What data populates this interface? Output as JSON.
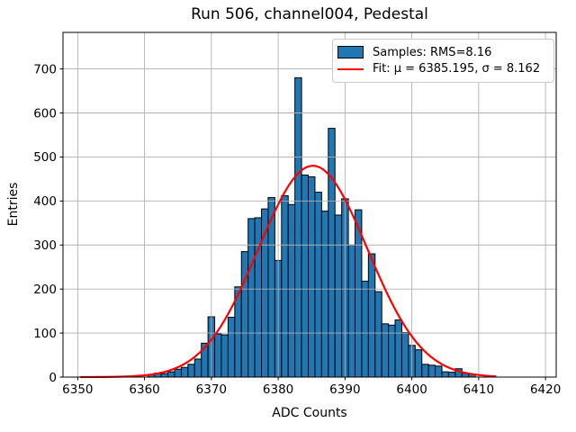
{
  "figure": {
    "title": "Run 506, channel004, Pedestal"
  },
  "colors": {
    "bar_fill": "#1f77b4",
    "bar_edge": "#000000",
    "fit_line": "#ff0000",
    "grid": "#b0b0b0",
    "axis": "#000000",
    "legend_border": "#cccccc"
  },
  "chart_data": {
    "type": "bar",
    "title": "Run 506, channel004, Pedestal",
    "xlabel": "ADC Counts",
    "ylabel": "Entries",
    "xlim": [
      6347.8,
      6421.6
    ],
    "ylim": [
      0,
      783
    ],
    "x_ticks": [
      6350,
      6360,
      6370,
      6380,
      6390,
      6400,
      6410,
      6420
    ],
    "y_ticks": [
      0,
      100,
      200,
      300,
      400,
      500,
      600,
      700
    ],
    "grid": true,
    "legend_position": "upper right",
    "bin_width": 1,
    "bin_centers": [
      6361,
      6362,
      6363,
      6364,
      6365,
      6366,
      6367,
      6368,
      6369,
      6370,
      6371,
      6372,
      6373,
      6374,
      6375,
      6376,
      6377,
      6378,
      6379,
      6380,
      6381,
      6382,
      6383,
      6384,
      6385,
      6386,
      6387,
      6388,
      6389,
      6390,
      6391,
      6392,
      6393,
      6394,
      6395,
      6396,
      6397,
      6398,
      6399,
      6400,
      6401,
      6402,
      6403,
      6404,
      6405,
      6406,
      6407,
      6408,
      6409
    ],
    "counts": [
      6,
      9,
      8,
      12,
      18,
      22,
      29,
      41,
      77,
      137,
      98,
      96,
      136,
      205,
      285,
      360,
      362,
      382,
      408,
      265,
      412,
      392,
      680,
      459,
      455,
      420,
      377,
      565,
      368,
      405,
      300,
      380,
      218,
      280,
      194,
      121,
      118,
      130,
      101,
      72,
      62,
      29,
      27,
      25,
      12,
      11,
      19,
      9,
      7
    ],
    "fit": {
      "mu": 6385.195,
      "sigma": 8.162,
      "amplitude": 480,
      "x_start": 6350.5,
      "x_end": 6412.7
    },
    "legend": [
      {
        "handle": "patch",
        "label": "Samples: RMS=8.16"
      },
      {
        "handle": "line",
        "label": "Fit: μ = 6385.195, σ = 8.162"
      }
    ]
  }
}
